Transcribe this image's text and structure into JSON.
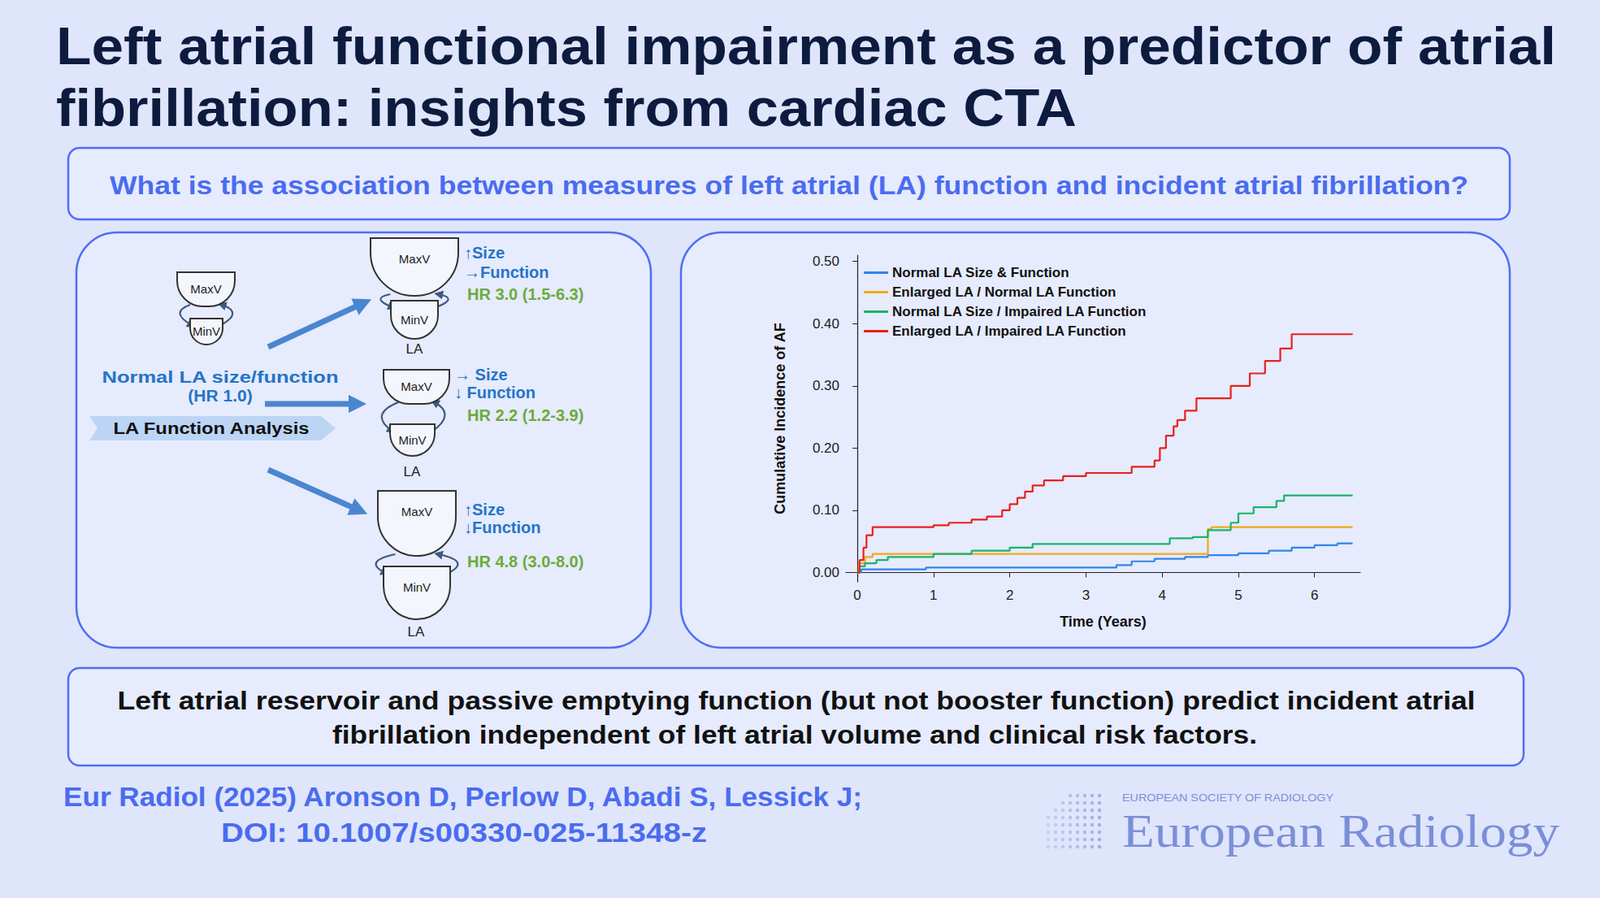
{
  "header": {
    "title_lines": [
      "Left atrial functional impairment as a predictor of atrial",
      "fibrillation: insights from cardiac CTA"
    ]
  },
  "question": "What is the association between measures of left atrial (LA) function and incident atrial fibrillation?",
  "diagram": {
    "reference": {
      "label": "Normal LA size/function",
      "hr": "(HR 1.0)"
    },
    "banner": "LA Function Analysis",
    "chamber_labels": {
      "max": "MaxV",
      "min": "MinV",
      "atrium": "LA"
    },
    "groups": [
      {
        "size": "↑Size",
        "function": "→Function",
        "hr": "HR 3.0 (1.5-6.3)"
      },
      {
        "size": "→ Size",
        "function": "↓ Function",
        "hr": "HR 2.2 (1.2-3.9)"
      },
      {
        "size": "↑Size",
        "function": "↓Function",
        "hr": "HR 4.8 (3.0-8.0)"
      }
    ]
  },
  "chart_data": {
    "type": "line",
    "line_style": "step",
    "x_label": "Time (Years)",
    "y_label": "Cumulative Incidence of AF",
    "xlim": [
      -0.15,
      6.6
    ],
    "ylim": [
      -0.015,
      0.51
    ],
    "xticks": [
      0,
      1,
      2,
      3,
      4,
      5,
      6
    ],
    "yticks": [
      {
        "value": 0,
        "label": "0.00"
      },
      {
        "value": 0.1,
        "label": "0.10"
      },
      {
        "value": 0.2,
        "label": "0.20"
      },
      {
        "value": 0.3,
        "label": "0.30"
      },
      {
        "value": 0.4,
        "label": "0.40"
      },
      {
        "value": 0.5,
        "label": "0.50"
      }
    ],
    "grid": false,
    "legend": "top-left",
    "series": [
      {
        "name": "Normal LA Size & Function",
        "color": "#2f86e8",
        "x": [
          0,
          0.05,
          0.9,
          3.4,
          3.6,
          3.9,
          4.3,
          4.6,
          5.0,
          5.4,
          5.7,
          6.0,
          6.3,
          6.5
        ],
        "values": [
          0,
          0.005,
          0.008,
          0.012,
          0.018,
          0.022,
          0.025,
          0.028,
          0.031,
          0.035,
          0.04,
          0.044,
          0.047,
          0.047
        ]
      },
      {
        "name": "Enlarged LA / Normal LA Function",
        "color": "#f4a81d",
        "x": [
          0,
          0.02,
          0.1,
          0.2,
          4.57,
          4.6,
          4.65,
          6.5
        ],
        "values": [
          0,
          0.015,
          0.025,
          0.03,
          0.03,
          0.07,
          0.073,
          0.073
        ]
      },
      {
        "name": "Normal LA Size / Impaired LA Function",
        "color": "#19b36b",
        "x": [
          0,
          0.03,
          0.1,
          0.25,
          0.4,
          1.0,
          1.5,
          2.0,
          2.3,
          4.1,
          4.4,
          4.6,
          4.9,
          5.0,
          5.2,
          5.5,
          5.6,
          6.5
        ],
        "values": [
          0,
          0.01,
          0.015,
          0.02,
          0.025,
          0.03,
          0.035,
          0.04,
          0.046,
          0.055,
          0.057,
          0.068,
          0.08,
          0.095,
          0.105,
          0.115,
          0.124,
          0.124
        ]
      },
      {
        "name": "Enlarged LA / Impaired LA Function",
        "color": "#e8201e",
        "x": [
          0,
          0.03,
          0.08,
          0.12,
          0.2,
          1.0,
          1.2,
          1.5,
          1.7,
          1.9,
          2.0,
          2.1,
          2.2,
          2.3,
          2.45,
          2.7,
          3.0,
          3.6,
          3.9,
          3.97,
          4.05,
          4.15,
          4.2,
          4.3,
          4.45,
          4.9,
          5.15,
          5.35,
          5.55,
          5.7,
          6.5
        ],
        "values": [
          0,
          0.02,
          0.04,
          0.06,
          0.073,
          0.076,
          0.08,
          0.085,
          0.09,
          0.1,
          0.11,
          0.12,
          0.13,
          0.14,
          0.148,
          0.155,
          0.16,
          0.17,
          0.18,
          0.2,
          0.22,
          0.235,
          0.245,
          0.26,
          0.28,
          0.3,
          0.32,
          0.34,
          0.36,
          0.383,
          0.383
        ]
      }
    ]
  },
  "conclusion": [
    "Left atrial reservoir and passive emptying function (but not booster function) predict incident atrial",
    "fibrillation independent of left atrial volume and clinical risk factors."
  ],
  "citation": [
    "Eur Radiol (2025) Aronson D, Perlow D, Abadi S, Lessick J;",
    "DOI: 10.1007/s00330-025-11348-z"
  ],
  "logo": {
    "society": "EUROPEAN SOCIETY OF RADIOLOGY",
    "journal": "European Radiology"
  }
}
